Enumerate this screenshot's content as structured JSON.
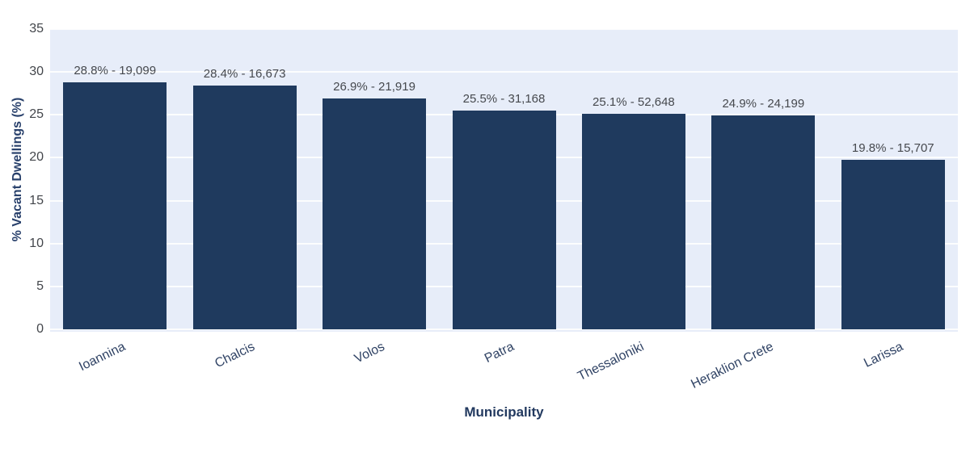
{
  "colors": {
    "bar_fill": "#1f3a5e",
    "plot_background": "#e7edf9",
    "gridline": "#ffffff",
    "axis_title": "#28406b",
    "y_tick_label": "#43464b",
    "x_tick_label": "#2f4264",
    "bar_value_label": "#46494e",
    "page_background": "#ffffff"
  },
  "chart_data": {
    "type": "bar",
    "title": "",
    "xlabel": "Municipality",
    "ylabel": "% Vacant Dwellings (%)",
    "categories": [
      "Ioannina",
      "Chalcis",
      "Volos",
      "Patra",
      "Thessaloniki",
      "Heraklion Crete",
      "Larissa"
    ],
    "values": [
      28.8,
      28.4,
      26.9,
      25.5,
      25.1,
      24.9,
      19.8
    ],
    "counts": [
      19099,
      16673,
      21919,
      31168,
      52648,
      24199,
      15707
    ],
    "bar_labels": [
      "28.8% - 19,099",
      "28.4% - 16,673",
      "26.9% - 21,919",
      "25.5% - 31,168",
      "25.1% - 52,648",
      "24.9% - 24,199",
      "19.8% - 15,707"
    ],
    "ylim": [
      0,
      35
    ],
    "yticks": [
      0,
      5,
      10,
      15,
      20,
      25,
      30,
      35
    ],
    "grid": true,
    "grid_orientation": "horizontal",
    "legend": false,
    "x_tick_angle_deg": -26
  }
}
